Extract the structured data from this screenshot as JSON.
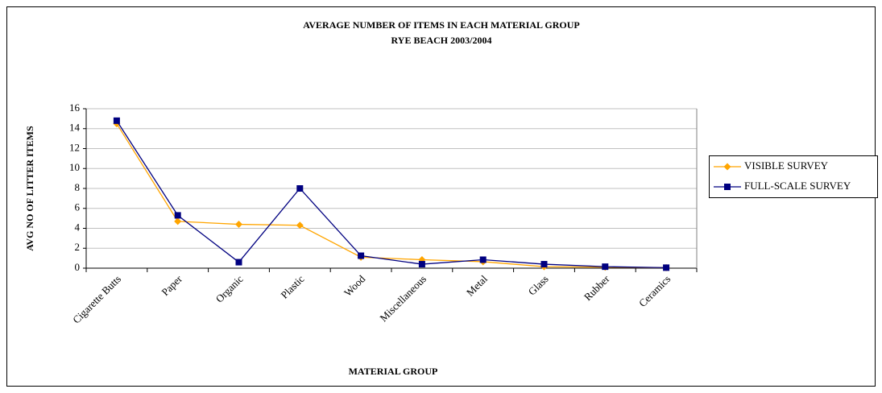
{
  "chart_data": {
    "type": "line",
    "title": "AVERAGE NUMBER OF ITEMS IN EACH MATERIAL GROUP",
    "subtitle": "RYE BEACH 2003/2004",
    "x_label": "MATERIAL GROUP",
    "y_label": "AVG NO OF LITTER ITEMS",
    "categories": [
      "Cigarette Butts",
      "Paper",
      "Organic",
      "Plastic",
      "Wood",
      "Miscellaneous",
      "Metal",
      "Glass",
      "Rubber",
      "Ceramics"
    ],
    "series": [
      {
        "name": "VISIBLE SURVEY",
        "color": "#ffa500",
        "marker": "diamond",
        "values": [
          14.5,
          4.7,
          4.4,
          4.3,
          1.1,
          0.85,
          0.65,
          0.15,
          0.1,
          0.05
        ]
      },
      {
        "name": "FULL-SCALE SURVEY",
        "color": "#000080",
        "marker": "square",
        "values": [
          14.8,
          5.3,
          0.6,
          8.0,
          1.25,
          0.4,
          0.85,
          0.4,
          0.15,
          0.05
        ]
      }
    ],
    "ylim": [
      0,
      16
    ],
    "yticks": [
      0,
      2,
      4,
      6,
      8,
      10,
      12,
      14,
      16
    ],
    "grid": true,
    "legend": "right"
  }
}
